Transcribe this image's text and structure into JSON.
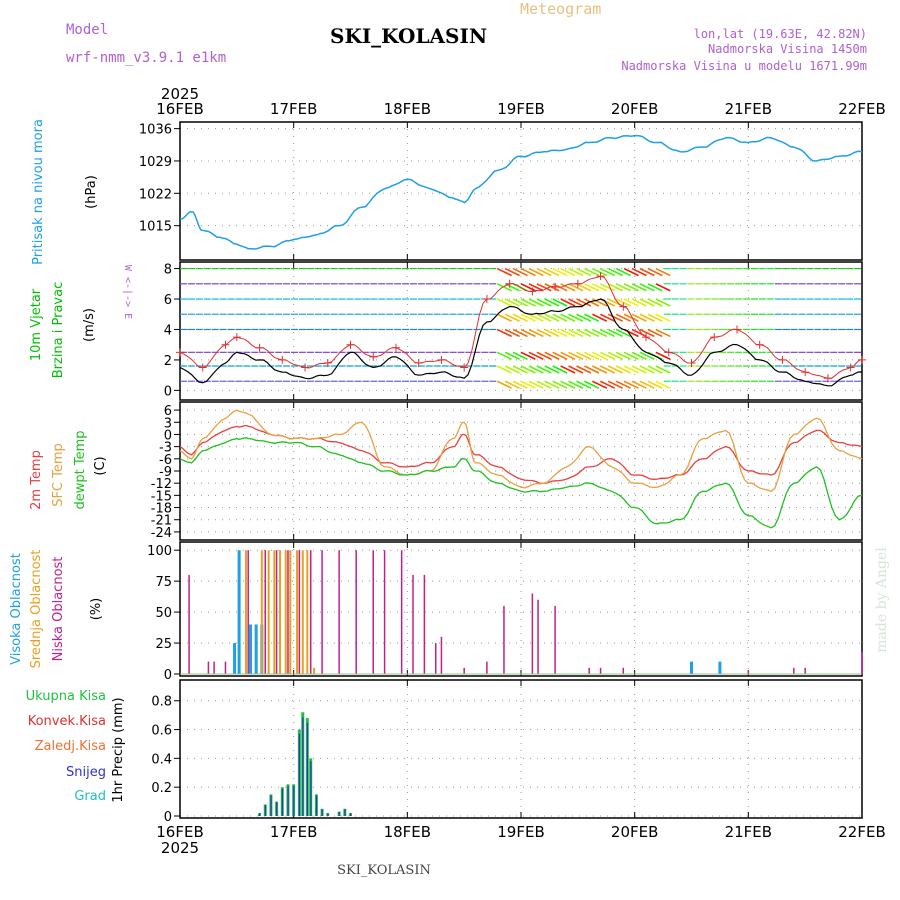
{
  "header": {
    "title": "SKI_KOLASIN",
    "subtitle": "Meteogram",
    "model_label": "Model",
    "model_name": "wrf-nmm_v3.9.1 e1km",
    "coords": "lon,lat (19.63E, 42.82N)",
    "elevation": "Nadmorska Visina 1450m",
    "model_elevation": "Nadmorska Visina u modelu 1671.99m",
    "footer_title": "SKI_KOLASIN",
    "watermark": "made by Angel",
    "year": "2025",
    "compass": "W <-|-> E"
  },
  "colors": {
    "pressure": "#1ea0e6",
    "wind": "#00c000",
    "wind_line": "#000000",
    "gust": "#e03030",
    "t2m": "#e84040",
    "sfc": "#e8a040",
    "dewpt": "#20c020",
    "cloud_high": "#1ea0e6",
    "cloud_mid": "#e8a020",
    "cloud_low": "#c0208a",
    "precip_total": "#20c040",
    "precip_conv": "#e03030",
    "precip_snow": "#3030d0",
    "precip_frz": "#f07030",
    "precip_graupel": "#20c0c0"
  },
  "chart_data": [
    {
      "type": "line",
      "name": "pressure",
      "ylabel": [
        "Pritisak na nivou mora",
        "(hPa)"
      ],
      "yticks": [
        1015,
        1022,
        1029,
        1036
      ],
      "ylim": [
        1008,
        1037
      ],
      "x_categories": [
        "16FEB",
        "17FEB",
        "18FEB",
        "19FEB",
        "20FEB",
        "21FEB",
        "22FEB"
      ],
      "x": [
        0,
        0.1,
        0.2,
        0.35,
        0.5,
        0.6,
        0.8,
        1.0,
        1.2,
        1.4,
        1.6,
        1.8,
        2.0,
        2.2,
        2.4,
        2.5,
        2.6,
        2.8,
        3.0,
        3.2,
        3.4,
        3.6,
        3.8,
        4.0,
        4.2,
        4.4,
        4.6,
        4.8,
        5.0,
        5.2,
        5.4,
        5.6,
        5.8,
        6.0
      ],
      "values": [
        1016.5,
        1018,
        1014,
        1012.5,
        1011,
        1010,
        1010.5,
        1012,
        1013,
        1015,
        1019,
        1023,
        1025,
        1023,
        1021,
        1020,
        1023,
        1027,
        1030,
        1031,
        1031.5,
        1033,
        1034,
        1034.5,
        1033,
        1031,
        1032,
        1034,
        1033,
        1034,
        1032,
        1029,
        1030,
        1031
      ]
    },
    {
      "type": "line",
      "name": "wind",
      "ylabel": [
        "10m Vjetar",
        "Brzina i Pravac",
        "(m/s)"
      ],
      "yticks": [
        0,
        2,
        4,
        6,
        8
      ],
      "ylim": [
        -0.5,
        8.3
      ],
      "series": [
        {
          "x": [
            0,
            0.2,
            0.4,
            0.5,
            0.7,
            0.9,
            1.1,
            1.3,
            1.5,
            1.7,
            1.9,
            2.1,
            2.3,
            2.5,
            2.7,
            2.9,
            3.1,
            3.3,
            3.5,
            3.7,
            3.9,
            4.1,
            4.3,
            4.5,
            4.7,
            4.9,
            5.1,
            5.3,
            5.5,
            5.7,
            5.9,
            6.0
          ],
          "values": [
            1.5,
            0.5,
            1.8,
            2.5,
            2.0,
            1.2,
            0.8,
            1.0,
            2.5,
            1.5,
            2.2,
            1.0,
            1.2,
            0.8,
            4.5,
            5.5,
            5.0,
            5.2,
            5.5,
            6.0,
            4.0,
            2.5,
            1.8,
            1.0,
            2.5,
            3.0,
            2.0,
            1.2,
            0.6,
            0.3,
            1.0,
            1.2
          ]
        },
        {
          "x": [
            0,
            0.2,
            0.4,
            0.5,
            0.7,
            0.9,
            1.1,
            1.3,
            1.5,
            1.7,
            1.9,
            2.1,
            2.3,
            2.5,
            2.7,
            2.9,
            3.1,
            3.3,
            3.5,
            3.7,
            3.9,
            4.1,
            4.3,
            4.5,
            4.7,
            4.9,
            5.1,
            5.3,
            5.5,
            5.7,
            5.9,
            6.0
          ],
          "values": [
            2.5,
            1.5,
            3.0,
            3.5,
            2.8,
            2.0,
            1.5,
            1.8,
            3.0,
            2.2,
            2.8,
            1.8,
            2.0,
            1.5,
            6.0,
            7.0,
            6.5,
            6.8,
            7.0,
            7.5,
            5.5,
            3.5,
            2.5,
            1.8,
            3.5,
            4.0,
            3.0,
            2.0,
            1.2,
            0.8,
            1.5,
            2.0
          ]
        }
      ]
    },
    {
      "type": "line",
      "name": "temperature",
      "ylabel": [
        "2m Temp",
        "SFC Temp",
        "dewpt Temp",
        "(C)"
      ],
      "yticks": [
        6,
        3,
        0,
        -3,
        -6,
        -9,
        -12,
        -15,
        -18,
        -21,
        -24
      ],
      "ylim": [
        -25.5,
        7.5
      ],
      "series": [
        {
          "name": "2m Temp",
          "x": [
            0,
            0.1,
            0.2,
            0.4,
            0.5,
            0.6,
            0.8,
            1.0,
            1.2,
            1.4,
            1.6,
            1.8,
            2.0,
            2.2,
            2.4,
            2.5,
            2.6,
            2.8,
            3.0,
            3.2,
            3.4,
            3.6,
            3.8,
            4.0,
            4.2,
            4.4,
            4.6,
            4.8,
            5.0,
            5.2,
            5.4,
            5.6,
            5.8,
            6.0
          ],
          "values": [
            -3,
            -5,
            -2,
            1,
            2,
            2,
            0,
            -1,
            -1,
            -2,
            -4,
            -7,
            -8,
            -7,
            -3,
            0,
            -5,
            -8,
            -11,
            -12,
            -11,
            -8,
            -6,
            -10,
            -11,
            -10,
            -6,
            -3,
            -9,
            -10,
            -2,
            1,
            -2,
            -3
          ]
        },
        {
          "name": "SFC Temp",
          "x": [
            0,
            0.1,
            0.2,
            0.4,
            0.5,
            0.6,
            0.8,
            1.0,
            1.2,
            1.4,
            1.6,
            1.8,
            2.0,
            2.2,
            2.4,
            2.5,
            2.6,
            2.8,
            3.0,
            3.2,
            3.4,
            3.6,
            3.8,
            4.0,
            4.2,
            4.4,
            4.6,
            4.8,
            5.0,
            5.2,
            5.4,
            5.6,
            5.8,
            6.0
          ],
          "values": [
            -4,
            -6,
            -1,
            4,
            6,
            5,
            0,
            -1,
            -1,
            0,
            3,
            -8,
            -10,
            -9,
            -1,
            3,
            -7,
            -10,
            -13,
            -12,
            -8,
            -3,
            -8,
            -12,
            -13,
            -10,
            -1,
            1,
            -12,
            -14,
            0,
            4,
            -4,
            -6
          ]
        },
        {
          "name": "dewpt Temp",
          "x": [
            0,
            0.1,
            0.2,
            0.4,
            0.5,
            0.6,
            0.8,
            1.0,
            1.2,
            1.4,
            1.6,
            1.8,
            2.0,
            2.2,
            2.4,
            2.5,
            2.6,
            2.8,
            3.0,
            3.2,
            3.4,
            3.6,
            3.8,
            4.0,
            4.2,
            4.4,
            4.6,
            4.8,
            5.0,
            5.2,
            5.4,
            5.6,
            5.8,
            6.0
          ],
          "values": [
            -6,
            -7,
            -4,
            -2,
            -1,
            -1,
            -2,
            -2,
            -3,
            -5,
            -7,
            -9,
            -10,
            -9,
            -8,
            -6,
            -9,
            -12,
            -14,
            -14,
            -13,
            -12,
            -14,
            -18,
            -22,
            -21,
            -14,
            -12,
            -20,
            -23,
            -12,
            -8,
            -21,
            -15
          ]
        }
      ]
    },
    {
      "type": "bar",
      "name": "cloud",
      "ylabel": [
        "Visoka Oblacnost",
        "Srednja Oblacnost",
        "Niska Oblacnost",
        "(%)"
      ],
      "yticks": [
        0,
        25,
        50,
        75,
        100
      ],
      "ylim": [
        0,
        105
      ],
      "series": [
        {
          "name": "Visoka Oblacnost",
          "x": [
            0.48,
            0.52,
            0.62,
            0.67,
            0.72,
            4.5,
            4.75
          ],
          "values": [
            25,
            100,
            40,
            40,
            40,
            10,
            10
          ]
        },
        {
          "name": "Srednja Oblacnost",
          "x": [
            0.58,
            0.72,
            0.78,
            0.83,
            0.88,
            0.93,
            0.97,
            1.03,
            1.08,
            1.12,
            1.18
          ],
          "values": [
            100,
            100,
            100,
            100,
            100,
            100,
            100,
            100,
            100,
            100,
            5
          ]
        },
        {
          "name": "Niska Oblacnost",
          "x": [
            0.08,
            0.25,
            0.3,
            0.4,
            0.6,
            0.75,
            0.85,
            0.95,
            1.05,
            1.15,
            1.25,
            1.4,
            1.55,
            1.7,
            1.8,
            1.95,
            2.05,
            2.15,
            2.25,
            2.3,
            2.5,
            2.7,
            2.85,
            3.1,
            3.15,
            3.3,
            3.6,
            3.7,
            3.9,
            5.0,
            5.4,
            5.5,
            6.0
          ],
          "values": [
            80,
            10,
            10,
            10,
            100,
            100,
            100,
            100,
            100,
            100,
            100,
            100,
            100,
            100,
            100,
            100,
            80,
            80,
            25,
            30,
            5,
            10,
            55,
            65,
            60,
            55,
            5,
            5,
            5,
            3,
            5,
            5,
            18
          ]
        }
      ]
    },
    {
      "type": "bar",
      "name": "precip",
      "ylabel": [
        "Ukupna Kisa",
        "Konvek.Kisa",
        "Zaledj.Kisa",
        "Snijeg",
        "Grad",
        "1hr Precip (mm)"
      ],
      "yticks": [
        0,
        0.2,
        0.4,
        0.6,
        0.8
      ],
      "ylim": [
        0,
        0.93
      ],
      "x": [
        0.7,
        0.75,
        0.8,
        0.85,
        0.9,
        0.95,
        1.0,
        1.05,
        1.08,
        1.12,
        1.15,
        1.2,
        1.25,
        1.3,
        1.4,
        1.45,
        1.5
      ],
      "values": [
        0.02,
        0.08,
        0.15,
        0.1,
        0.2,
        0.22,
        0.22,
        0.6,
        0.72,
        0.68,
        0.4,
        0.15,
        0.05,
        0.02,
        0.03,
        0.05,
        0.02
      ]
    }
  ]
}
